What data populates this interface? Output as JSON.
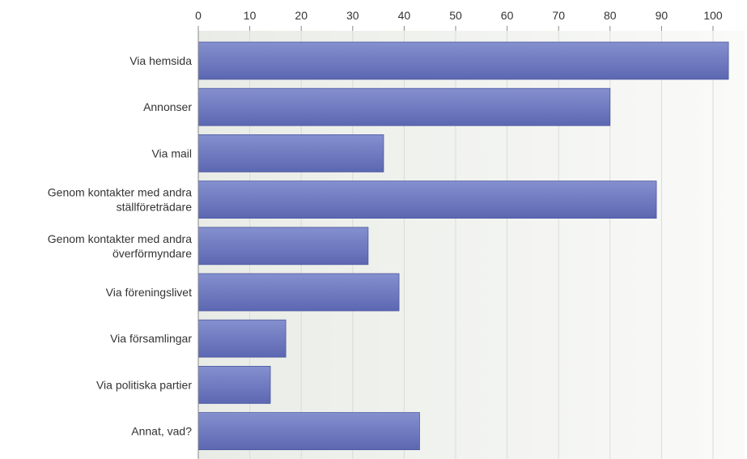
{
  "chart_data": {
    "type": "bar",
    "orientation": "horizontal",
    "categories": [
      [
        "Via hemsida"
      ],
      [
        "Annonser"
      ],
      [
        "Via mail"
      ],
      [
        "Genom kontakter med andra",
        "ställföreträdare"
      ],
      [
        "Genom kontakter med andra",
        "överförmyndare"
      ],
      [
        "Via föreningslivet"
      ],
      [
        "Via församlingar"
      ],
      [
        "Via politiska partier"
      ],
      [
        "Annat, vad?"
      ]
    ],
    "values": [
      103,
      80,
      36,
      89,
      33,
      39,
      17,
      14,
      43
    ],
    "xlim": [
      0,
      104
    ],
    "ticks": [
      "0",
      "10",
      "20",
      "30",
      "40",
      "50",
      "60",
      "70",
      "80",
      "90",
      "100"
    ],
    "x_axis_position": "top",
    "grid": true,
    "legend": "none",
    "colors": {
      "bar_top": "#8590cf",
      "bar_bottom": "#5c67b2",
      "bar_stroke": "#4d58a0",
      "plot_bg_left": "#e9ece6",
      "plot_bg_right": "#fafaf9",
      "grid": "#d9dcd6",
      "axis": "#888888"
    }
  }
}
